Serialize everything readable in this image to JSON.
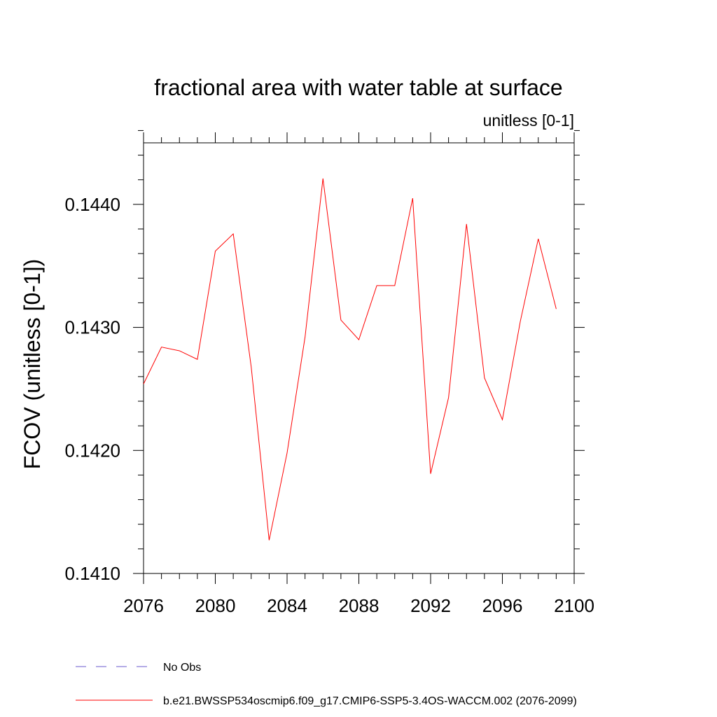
{
  "chart_data": {
    "type": "line",
    "title": "fractional area with water table at surface",
    "subtitle": "unitless [0-1]",
    "xlabel": "",
    "ylabel": "FCOV  (unitless [0-1])",
    "xlim": [
      2076,
      2100
    ],
    "ylim": [
      0.141,
      0.1445
    ],
    "x_ticks": [
      2076,
      2080,
      2084,
      2088,
      2092,
      2096,
      2100
    ],
    "x_tick_labels": [
      "2076",
      "2080",
      "2084",
      "2088",
      "2092",
      "2096",
      "2100"
    ],
    "y_ticks": [
      0.141,
      0.142,
      0.143,
      0.144
    ],
    "y_tick_labels": [
      "0.1410",
      "0.1420",
      "0.1430",
      "0.1440"
    ],
    "grid": false,
    "series": [
      {
        "name": "b.e21.BWSSP534oscmip6.f09_g17.CMIP6-SSP5-3.4OS-WACCM.002 (2076-2099)",
        "color": "#ff0000",
        "style": "solid",
        "x": [
          2076,
          2077,
          2078,
          2079,
          2080,
          2081,
          2082,
          2083,
          2084,
          2085,
          2086,
          2087,
          2088,
          2089,
          2090,
          2091,
          2092,
          2093,
          2094,
          2095,
          2096,
          2097,
          2098,
          2099
        ],
        "values": [
          0.14254,
          0.14284,
          0.14281,
          0.14274,
          0.14362,
          0.14376,
          0.14268,
          0.14127,
          0.14198,
          0.14292,
          0.14421,
          0.14306,
          0.1429,
          0.14334,
          0.14334,
          0.14405,
          0.14181,
          0.14243,
          0.14384,
          0.14259,
          0.14225,
          0.14305,
          0.14372,
          0.14315
        ]
      }
    ],
    "legend": [
      {
        "label": "No Obs",
        "color": "#6a5acd",
        "style": "dashed"
      },
      {
        "label": "b.e21.BWSSP534oscmip6.f09_g17.CMIP6-SSP5-3.4OS-WACCM.002 (2076-2099)",
        "color": "#ff0000",
        "style": "solid"
      }
    ],
    "legend_position": "bottom-left"
  }
}
